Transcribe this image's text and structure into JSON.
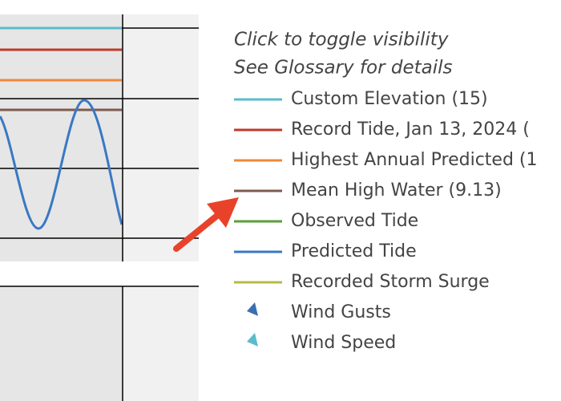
{
  "legend": {
    "hints": [
      "Click to toggle visibility",
      "See Glossary for details"
    ],
    "items": [
      {
        "name": "Custom Elevation (15)",
        "color": "#5bbccc",
        "marker": "line"
      },
      {
        "name": "Record Tide, Jan 13, 2024 (",
        "color": "#c0392b",
        "marker": "line"
      },
      {
        "name": "Highest Annual Predicted (1",
        "color": "#f0883a",
        "marker": "line"
      },
      {
        "name": "Mean High Water (9.13)",
        "color": "#7f5a50",
        "marker": "line"
      },
      {
        "name": "Observed Tide",
        "color": "#5a9e3a",
        "marker": "line"
      },
      {
        "name": "Predicted Tide",
        "color": "#3a78c4",
        "marker": "line"
      },
      {
        "name": "Recorded Storm Surge",
        "color": "#b5bb45",
        "marker": "line"
      },
      {
        "name": "Wind Gusts",
        "color": "#3a6fb0",
        "marker": "triangle"
      },
      {
        "name": "Wind Speed",
        "color": "#5bbccc",
        "marker": "triangle"
      }
    ]
  }
}
